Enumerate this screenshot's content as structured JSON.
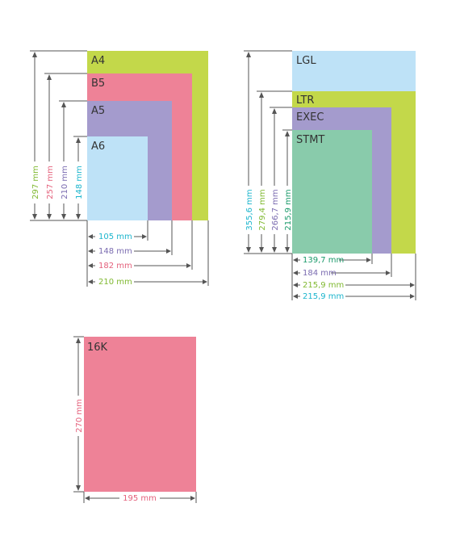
{
  "colors": {
    "green": "#c3d84a",
    "pink": "#ee8297",
    "purple": "#a49bcd",
    "blue": "#bee2f7",
    "teal": "#89cbab",
    "text_green": "#7fb82f",
    "text_pink": "#e4607b",
    "text_purple": "#7a6bb0",
    "text_blue": "#1bb5cd",
    "text_teal": "#1a9a6a",
    "line": "#555555"
  },
  "group_iso": {
    "sheets": [
      {
        "name": "A4",
        "color": "green"
      },
      {
        "name": "B5",
        "color": "pink"
      },
      {
        "name": "A5",
        "color": "purple"
      },
      {
        "name": "A6",
        "color": "blue"
      }
    ],
    "heights": [
      {
        "label": "297 mm",
        "color": "text_green"
      },
      {
        "label": "257 mm",
        "color": "text_pink"
      },
      {
        "label": "210 mm",
        "color": "text_purple"
      },
      {
        "label": "148 mm",
        "color": "text_blue"
      }
    ],
    "widths": [
      {
        "label": "105 mm",
        "color": "text_blue"
      },
      {
        "label": "148 mm",
        "color": "text_purple"
      },
      {
        "label": "182 mm",
        "color": "text_pink"
      },
      {
        "label": "210 mm",
        "color": "text_green"
      }
    ]
  },
  "group_us": {
    "sheets": [
      {
        "name": "LGL",
        "color": "blue"
      },
      {
        "name": "LTR",
        "color": "green"
      },
      {
        "name": "EXEC",
        "color": "purple"
      },
      {
        "name": "STMT",
        "color": "teal"
      }
    ],
    "heights": [
      {
        "label": "355,6 mm",
        "color": "text_blue"
      },
      {
        "label": "279,4 mm",
        "color": "text_green"
      },
      {
        "label": "266,7 mm",
        "color": "text_purple"
      },
      {
        "label": "215,9 mm",
        "color": "text_teal"
      }
    ],
    "widths": [
      {
        "label": "139,7 mm",
        "color": "text_teal"
      },
      {
        "label": "184 mm",
        "color": "text_purple"
      },
      {
        "label": "215,9 mm",
        "color": "text_green"
      },
      {
        "label": "215,9 mm",
        "color": "text_blue"
      }
    ]
  },
  "group_16k": {
    "sheet": {
      "name": "16K",
      "color": "pink"
    },
    "height": {
      "label": "270 mm",
      "color": "text_pink"
    },
    "width": {
      "label": "195 mm",
      "color": "text_pink"
    }
  }
}
